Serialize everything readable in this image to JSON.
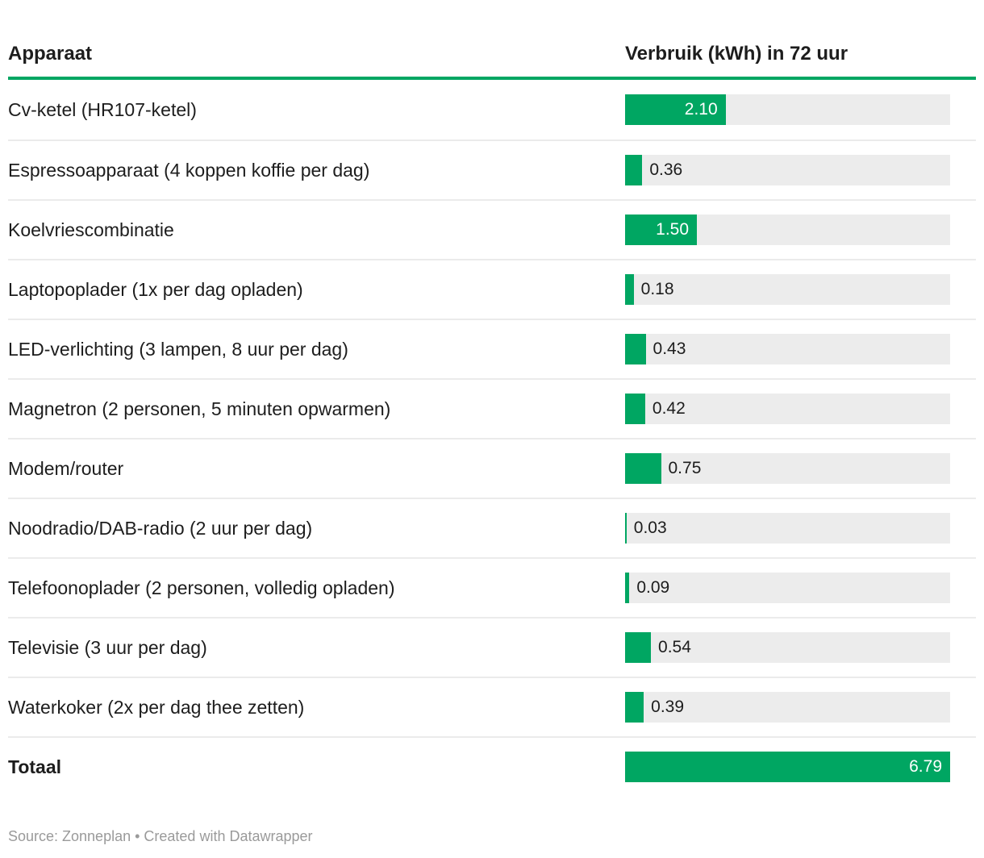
{
  "header": {
    "col_device": "Apparaat",
    "col_value": "Verbruik (kWh) in 72 uur"
  },
  "rows": [
    {
      "label": "Cv-ketel (HR107-ketel)",
      "value": "2.10",
      "value_num": 2.1
    },
    {
      "label": "Espressoapparaat (4 koppen koffie per dag)",
      "value": "0.36",
      "value_num": 0.36
    },
    {
      "label": "Koelvriescombinatie",
      "value": "1.50",
      "value_num": 1.5
    },
    {
      "label": "Laptopoplader (1x per dag opladen)",
      "value": "0.18",
      "value_num": 0.18
    },
    {
      "label": "LED-verlichting (3 lampen, 8 uur per dag)",
      "value": "0.43",
      "value_num": 0.43
    },
    {
      "label": "Magnetron (2 personen, 5 minuten opwarmen)",
      "value": "0.42",
      "value_num": 0.42
    },
    {
      "label": "Modem/router",
      "value": "0.75",
      "value_num": 0.75
    },
    {
      "label": "Noodradio/DAB-radio (2 uur per dag)",
      "value": "0.03",
      "value_num": 0.03
    },
    {
      "label": "Telefoonoplader (2 personen, volledig opladen)",
      "value": "0.09",
      "value_num": 0.09
    },
    {
      "label": "Televisie (3 uur per dag)",
      "value": "0.54",
      "value_num": 0.54
    },
    {
      "label": "Waterkoker (2x per dag thee zetten)",
      "value": "0.39",
      "value_num": 0.39
    }
  ],
  "total": {
    "label": "Totaal",
    "value": "6.79",
    "value_num": 6.79
  },
  "footer": {
    "text": "Source: Zonneplan • Created with Datawrapper"
  },
  "colors": {
    "bar_green": "#00a662",
    "track_gray": "#ececec",
    "divider": "#ebebeb",
    "text_dark": "#1d1d1d",
    "footer_gray": "#9a9a9a"
  },
  "chart_data": {
    "type": "bar",
    "orientation": "horizontal",
    "title": "",
    "xlabel": "Verbruik (kWh) in 72 uur",
    "ylabel": "Apparaat",
    "xlim": [
      0,
      6.79
    ],
    "grid": false,
    "legend": "none",
    "categories": [
      "Cv-ketel (HR107-ketel)",
      "Espressoapparaat (4 koppen koffie per dag)",
      "Koelvriescombinatie",
      "Laptopoplader (1x per dag opladen)",
      "LED-verlichting (3 lampen, 8 uur per dag)",
      "Magnetron (2 personen, 5 minuten opwarmen)",
      "Modem/router",
      "Noodradio/DAB-radio (2 uur per dag)",
      "Telefoonoplader (2 personen, volledig opladen)",
      "Televisie (3 uur per dag)",
      "Waterkoker (2x per dag thee zetten)"
    ],
    "values": [
      2.1,
      0.36,
      1.5,
      0.18,
      0.43,
      0.42,
      0.75,
      0.03,
      0.09,
      0.54,
      0.39
    ],
    "total": {
      "label": "Totaal",
      "value": 6.79
    },
    "bar_color": "#00a662",
    "source": "Source: Zonneplan • Created with Datawrapper"
  }
}
